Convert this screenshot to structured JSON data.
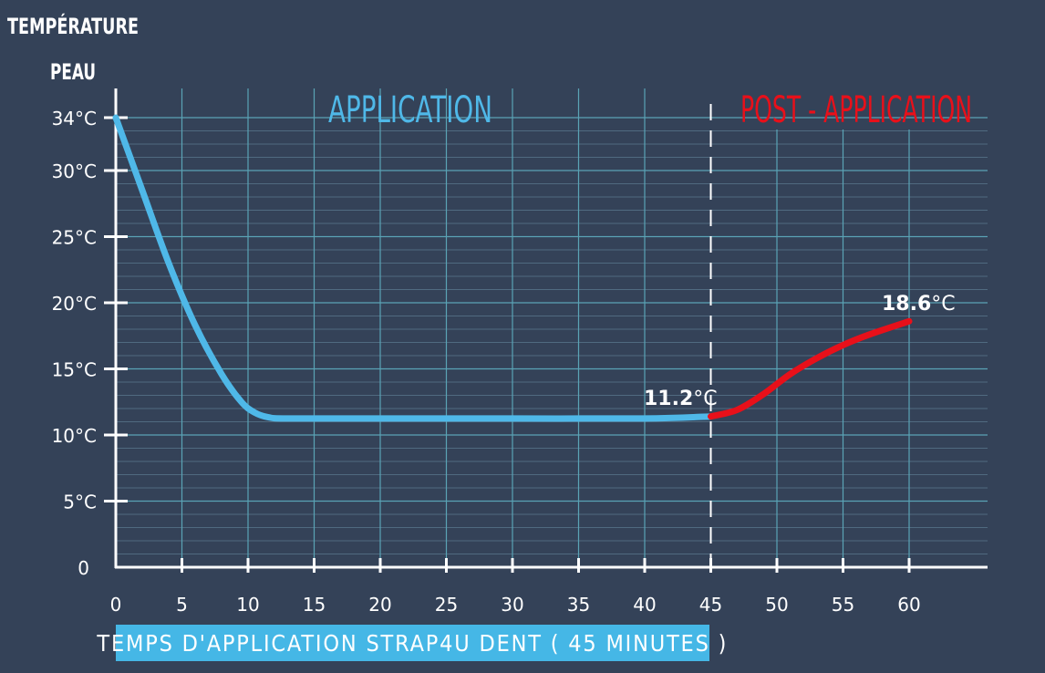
{
  "chart_data": {
    "type": "line",
    "ylabel": [
      "TEMPÉRATURE",
      "PEAU"
    ],
    "xlabel": "TEMPS D'APPLICATION STRAP4U DENT ( 45 MINUTES )",
    "xlim": [
      0,
      60
    ],
    "ylim": [
      0,
      34
    ],
    "x_ticks": [
      0,
      5,
      10,
      15,
      20,
      25,
      30,
      35,
      40,
      45,
      50,
      55,
      60
    ],
    "y_ticks": [
      {
        "value": 0,
        "label": "0"
      },
      {
        "value": 5,
        "label": "5°C"
      },
      {
        "value": 10,
        "label": "10°C"
      },
      {
        "value": 15,
        "label": "15°C"
      },
      {
        "value": 20,
        "label": "20°C"
      },
      {
        "value": 25,
        "label": "25°C"
      },
      {
        "value": 30,
        "label": "30°C"
      },
      {
        "value": 34,
        "label": "34°C"
      }
    ],
    "grid": true,
    "phase_divider_x": 45,
    "phases": [
      {
        "label": "APPLICATION",
        "color": "#4fb8e8"
      },
      {
        "label": "POST - APPLICATION",
        "color": "#e8101a"
      }
    ],
    "series": [
      {
        "name": "APPLICATION",
        "color": "#4fb8e8",
        "x": [
          0,
          2,
          4,
          6,
          8,
          9.5,
          10.5,
          11.5,
          13,
          20,
          30,
          40,
          45
        ],
        "y": [
          34,
          28.5,
          23,
          18.3,
          14.6,
          12.5,
          11.7,
          11.35,
          11.25,
          11.25,
          11.25,
          11.25,
          11.4
        ]
      },
      {
        "name": "POST - APPLICATION",
        "color": "#e8101a",
        "x": [
          45,
          47,
          49,
          51,
          53,
          55,
          57,
          60
        ],
        "y": [
          11.4,
          11.9,
          13.1,
          14.6,
          15.8,
          16.8,
          17.6,
          18.6
        ]
      }
    ],
    "annotations": [
      {
        "x": 45,
        "y": 11.2,
        "value": "11.2",
        "unit": "°C"
      },
      {
        "x": 60,
        "y": 18.6,
        "value": "18.6",
        "unit": "°C"
      }
    ]
  }
}
